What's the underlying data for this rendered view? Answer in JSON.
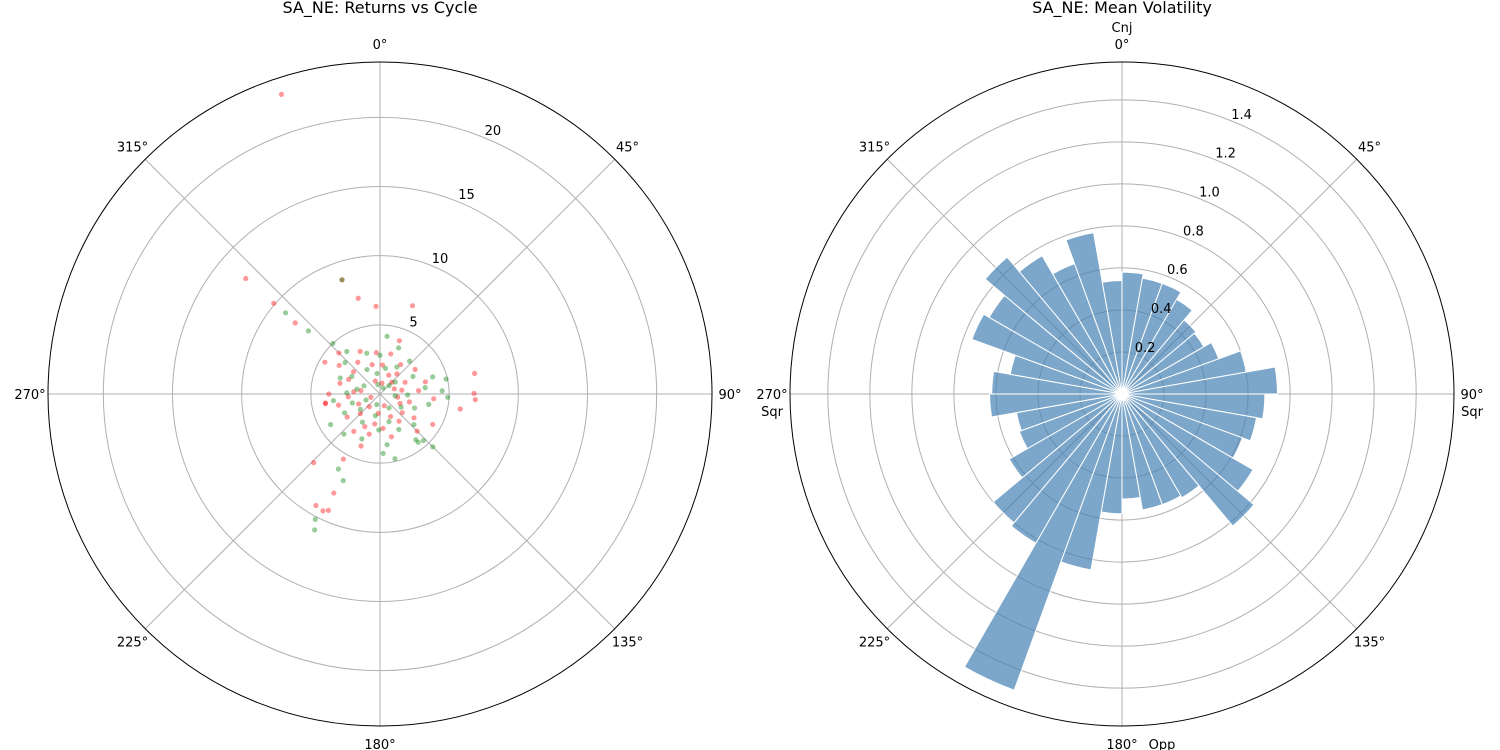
{
  "chart_data": [
    {
      "type": "scatter",
      "projection": "polar",
      "title": "SA_NE: Returns vs Cycle",
      "theta_direction": "clockwise",
      "theta_zero": "top",
      "theta_tick_labels": [
        "0°",
        "45°",
        "90°",
        "135°",
        "180°",
        "225°",
        "270°",
        "315°"
      ],
      "r_ticks": [
        5,
        10,
        15,
        20
      ],
      "r_tick_labels": [
        "5",
        "10",
        "15",
        "20"
      ],
      "rlim": [
        0,
        24
      ],
      "grid": true,
      "series": [
        {
          "color": "#ff0000",
          "alpha": 0.4,
          "points": [
            [
              5,
              2.1
            ],
            [
              15,
              3.0
            ],
            [
              25,
              1.5
            ],
            [
              35,
              2.6
            ],
            [
              45,
              1.2
            ],
            [
              55,
              3.1
            ],
            [
              65,
              2.0
            ],
            [
              75,
              3.4
            ],
            [
              85,
              2.8
            ],
            [
              95,
              3.9
            ],
            [
              105,
              2.2
            ],
            [
              115,
              1.6
            ],
            [
              125,
              3.0
            ],
            [
              135,
              3.8
            ],
            [
              145,
              2.4
            ],
            [
              155,
              1.8
            ],
            [
              165,
              3.2
            ],
            [
              175,
              2.5
            ],
            [
              185,
              1.4
            ],
            [
              195,
              3.0
            ],
            [
              205,
              2.6
            ],
            [
              215,
              3.3
            ],
            [
              225,
              2.0
            ],
            [
              235,
              2.9
            ],
            [
              245,
              1.7
            ],
            [
              255,
              3.1
            ],
            [
              265,
              2.3
            ],
            [
              275,
              1.9
            ],
            [
              285,
              3.0
            ],
            [
              295,
              2.5
            ],
            [
              305,
              3.6
            ],
            [
              315,
              4.2
            ],
            [
              325,
              2.8
            ],
            [
              335,
              3.4
            ],
            [
              345,
              2.2
            ],
            [
              355,
              3.0
            ],
            [
              10,
              0.8
            ],
            [
              40,
              1.9
            ],
            [
              70,
              1.1
            ],
            [
              100,
              1.3
            ],
            [
              130,
              2.1
            ],
            [
              160,
              0.9
            ],
            [
              190,
              2.2
            ],
            [
              220,
              1.2
            ],
            [
              250,
              0.7
            ],
            [
              280,
              1.4
            ],
            [
              310,
              2.5
            ],
            [
              340,
              1.0
            ],
            [
              20,
              4.1
            ],
            [
              120,
              4.4
            ],
            [
              300,
              4.6
            ],
            [
              200,
              4.0
            ],
            [
              80,
              1.6
            ],
            [
              260,
              4.0
            ],
            [
              341.8,
              22.8
            ],
            [
              310.7,
              12.8
            ],
            [
              310.5,
              10.1
            ],
            [
              310,
              8.0
            ],
            [
              347.2,
              7.1
            ],
            [
              357.4,
              6.35
            ],
            [
              20.2,
              6.8
            ],
            [
              77.7,
              7.0
            ],
            [
              89.6,
              6.8
            ],
            [
              93.4,
              6.9
            ],
            [
              100.6,
              5.9
            ],
            [
              224,
              6.9
            ],
            [
              209.4,
              5.4
            ],
            [
              205,
              7.9
            ],
            [
              209.9,
              9.3
            ],
            [
              203.9,
              9.2
            ],
            [
              206,
              9.4
            ],
            [
              260.7,
              4.0
            ],
            [
              270,
              3.7
            ],
            [
              341.6,
              8.7
            ]
          ]
        },
        {
          "color": "#008000",
          "alpha": 0.4,
          "points": [
            [
              0,
              2.8
            ],
            [
              12,
              1.9
            ],
            [
              22,
              3.6
            ],
            [
              32,
              2.3
            ],
            [
              42,
              3.2
            ],
            [
              52,
              1.4
            ],
            [
              62,
              2.7
            ],
            [
              72,
              4.0
            ],
            [
              82,
              3.3
            ],
            [
              92,
              2.0
            ],
            [
              102,
              3.6
            ],
            [
              112,
              2.7
            ],
            [
              122,
              1.8
            ],
            [
              132,
              3.3
            ],
            [
              142,
              4.2
            ],
            [
              152,
              2.9
            ],
            [
              162,
              2.1
            ],
            [
              172,
              3.7
            ],
            [
              182,
              2.6
            ],
            [
              192,
              1.6
            ],
            [
              202,
              3.5
            ],
            [
              212,
              2.4
            ],
            [
              222,
              3.9
            ],
            [
              232,
              1.8
            ],
            [
              242,
              2.9
            ],
            [
              252,
              2.1
            ],
            [
              262,
              3.4
            ],
            [
              272,
              2.4
            ],
            [
              282,
              1.7
            ],
            [
              292,
              3.1
            ],
            [
              302,
              2.4
            ],
            [
              312,
              3.4
            ],
            [
              322,
              3.9
            ],
            [
              332,
              2.0
            ],
            [
              342,
              3.1
            ],
            [
              352,
              1.5
            ],
            [
              7,
              4.2
            ],
            [
              47,
              0.9
            ],
            [
              97,
              1.1
            ],
            [
              147,
              1.2
            ],
            [
              197,
              0.8
            ],
            [
              247,
              1.1
            ],
            [
              297,
              1.3
            ],
            [
              347,
              0.7
            ],
            [
              137,
              4.6
            ],
            [
              317,
              5.0
            ],
            [
              27,
              0.5
            ],
            [
              177,
              4.3
            ],
            [
              87,
              4.5
            ],
            [
              310.7,
              9.0
            ],
            [
              311.4,
              6.9
            ],
            [
              77.3,
              4.9
            ],
            [
              92.8,
              4.9
            ],
            [
              135,
              5.4
            ],
            [
              141.6,
              4.45
            ],
            [
              167,
              4.8
            ],
            [
              209,
              6.2
            ],
            [
              203,
              6.8
            ],
            [
              207.3,
              10.2
            ],
            [
              205.7,
              10.9
            ],
            [
              238.2,
              4.2
            ],
            [
              341.6,
              8.7
            ]
          ]
        }
      ]
    },
    {
      "type": "bar",
      "projection": "polar",
      "title": "SA_NE: Mean Volatility",
      "theta_direction": "clockwise",
      "theta_zero": "top",
      "theta_tick_labels": [
        "0°",
        "45°",
        "90°",
        "135°",
        "180°",
        "225°",
        "270°",
        "315°"
      ],
      "aspect_labels": [
        {
          "angle": 0,
          "label": "Cnj"
        },
        {
          "angle": 90,
          "label": "Sqr"
        },
        {
          "angle": 180,
          "label": "Opp"
        },
        {
          "angle": 270,
          "label": "Sqr"
        }
      ],
      "r_ticks": [
        0.2,
        0.4,
        0.6,
        0.8,
        1.0,
        1.2,
        1.4
      ],
      "r_tick_labels": [
        "0.2",
        "0.4",
        "0.6",
        "0.8",
        "1.0",
        "1.2",
        "1.4"
      ],
      "rlim": [
        0,
        1.58
      ],
      "grid": true,
      "bar_width_deg": 10,
      "color": "#4682b4",
      "alpha": 0.7,
      "bin_start_deg": [
        0,
        10,
        20,
        30,
        40,
        50,
        60,
        70,
        80,
        90,
        100,
        110,
        120,
        130,
        140,
        150,
        160,
        170,
        180,
        190,
        200,
        210,
        220,
        230,
        240,
        250,
        260,
        270,
        280,
        290,
        300,
        310,
        320,
        330,
        340,
        350
      ],
      "values": [
        0.58,
        0.56,
        0.56,
        0.52,
        0.46,
        0.45,
        0.49,
        0.6,
        0.74,
        0.68,
        0.65,
        0.61,
        0.72,
        0.82,
        0.57,
        0.56,
        0.56,
        0.5,
        0.57,
        0.85,
        1.5,
        0.82,
        0.8,
        0.62,
        0.52,
        0.51,
        0.63,
        0.62,
        0.54,
        0.76,
        0.73,
        0.85,
        0.76,
        0.66,
        0.78,
        0.54
      ]
    }
  ]
}
